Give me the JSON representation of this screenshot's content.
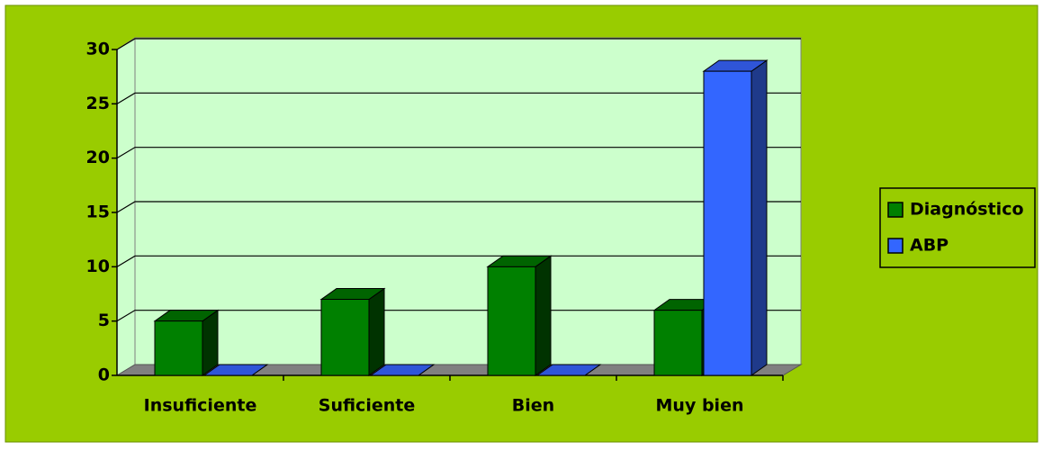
{
  "chart_data": {
    "type": "bar3d",
    "categories": [
      "Insuficiente",
      "Suficiente",
      "Bien",
      "Muy bien"
    ],
    "series": [
      {
        "name": "Diagnóstico",
        "color": "#008000",
        "values": [
          5,
          7,
          10,
          6
        ]
      },
      {
        "name": "ABP",
        "color": "#3366ff",
        "values": [
          0,
          0,
          0,
          28
        ]
      }
    ],
    "ylim": [
      0,
      30
    ],
    "yticks": [
      0,
      5,
      10,
      15,
      20,
      25,
      30
    ],
    "grid": true,
    "legend": "right"
  }
}
